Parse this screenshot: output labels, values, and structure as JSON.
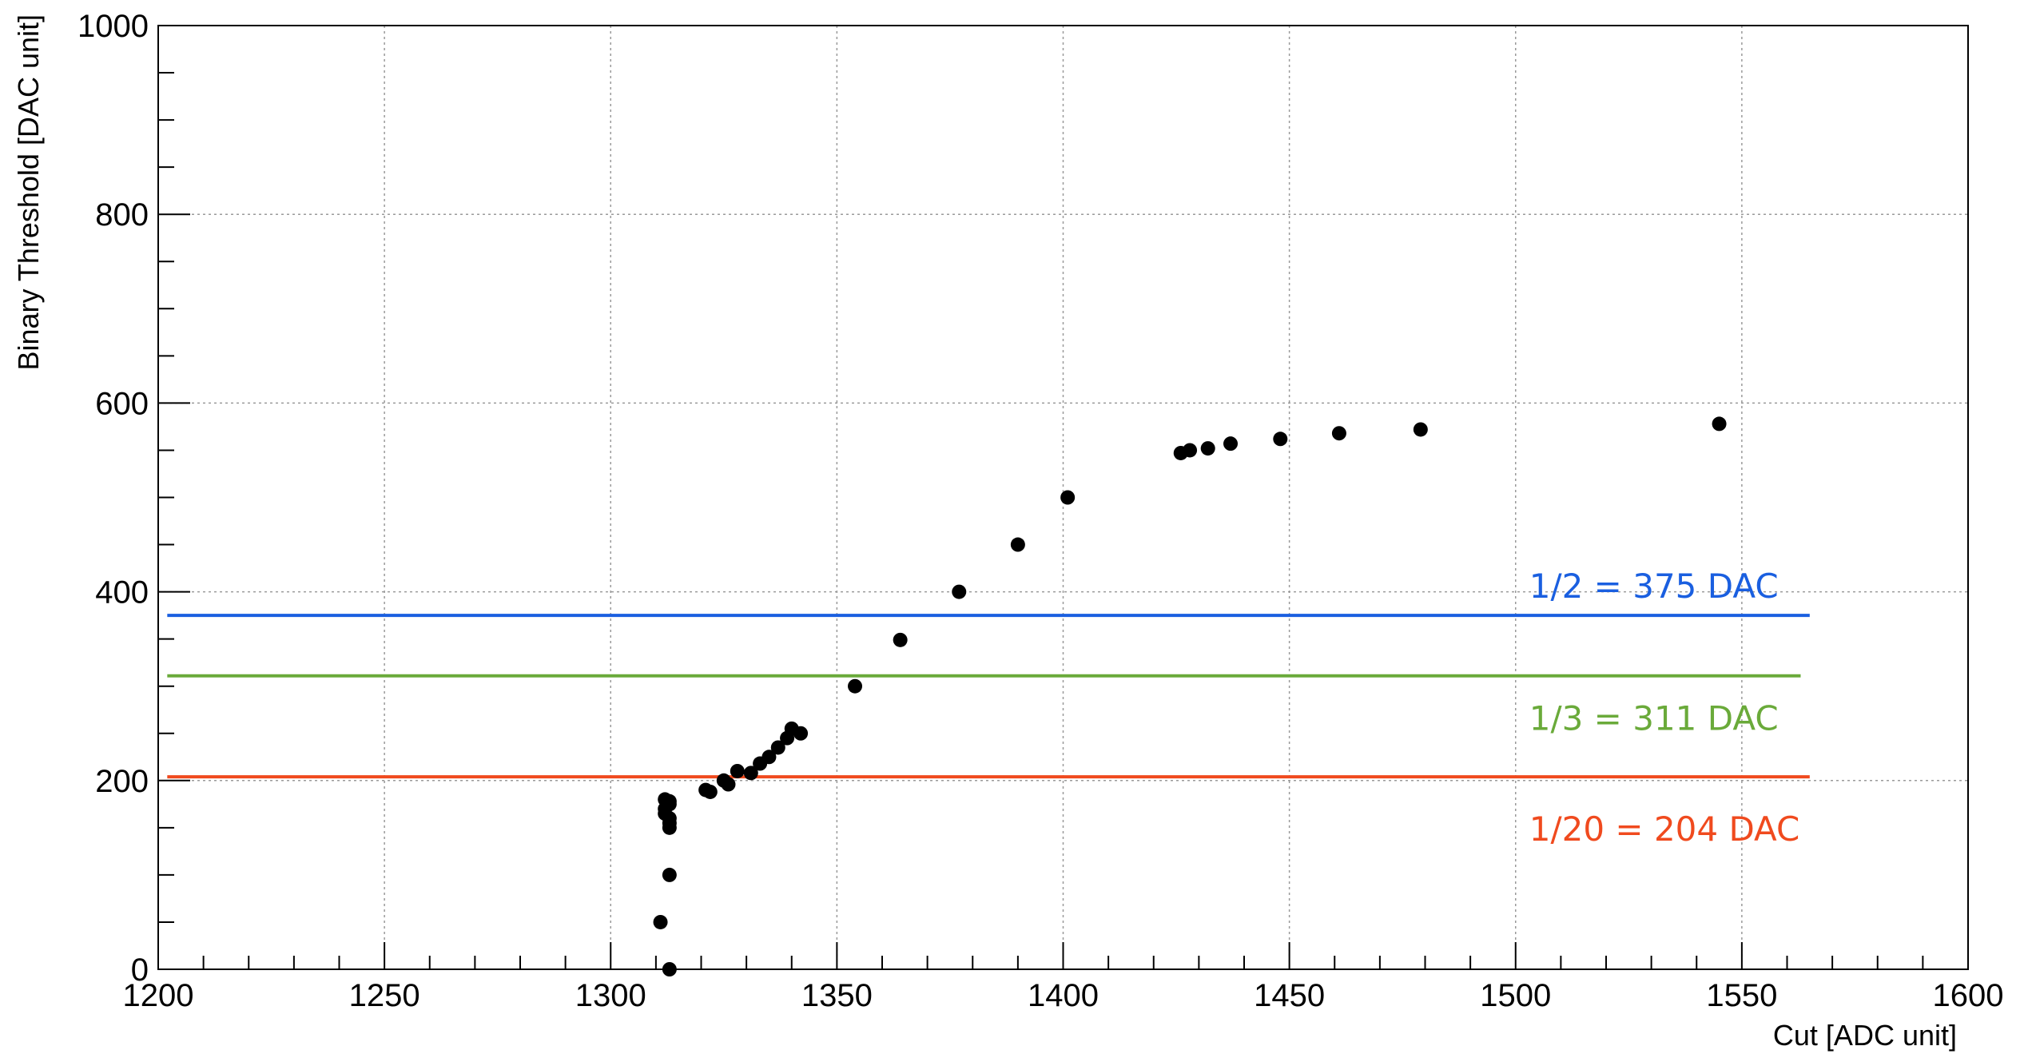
{
  "chart_data": {
    "type": "scatter",
    "title": "",
    "xlabel": "Cut [ADC unit]",
    "ylabel": "Binary Threshold [DAC unit]",
    "xlim": [
      1200,
      1600
    ],
    "ylim": [
      0,
      1000
    ],
    "x_ticks": [
      1200,
      1250,
      1300,
      1350,
      1400,
      1450,
      1500,
      1550,
      1600
    ],
    "y_ticks": [
      0,
      200,
      400,
      600,
      800,
      1000
    ],
    "grid": true,
    "legend": "none",
    "marker_color": "#000000",
    "series": [
      {
        "points": [
          [
            1311,
            50
          ],
          [
            1313,
            0
          ],
          [
            1313,
            100
          ],
          [
            1313,
            150
          ],
          [
            1313,
            155
          ],
          [
            1313,
            160
          ],
          [
            1312,
            165
          ],
          [
            1312,
            170
          ],
          [
            1312,
            180
          ],
          [
            1313,
            175
          ],
          [
            1313,
            178
          ],
          [
            1321,
            190
          ],
          [
            1322,
            188
          ],
          [
            1325,
            200
          ],
          [
            1326,
            196
          ],
          [
            1328,
            210
          ],
          [
            1331,
            208
          ],
          [
            1333,
            218
          ],
          [
            1335,
            225
          ],
          [
            1337,
            235
          ],
          [
            1339,
            245
          ],
          [
            1340,
            255
          ],
          [
            1342,
            250
          ],
          [
            1354,
            300
          ],
          [
            1364,
            349
          ],
          [
            1377,
            400
          ],
          [
            1390,
            450
          ],
          [
            1401,
            500
          ],
          [
            1426,
            547
          ],
          [
            1428,
            550
          ],
          [
            1432,
            552
          ],
          [
            1437,
            557
          ],
          [
            1448,
            562
          ],
          [
            1461,
            568
          ],
          [
            1479,
            572
          ],
          [
            1545,
            578
          ]
        ]
      }
    ],
    "reference_lines": [
      {
        "y": 375,
        "x_start": 1202,
        "x_end": 1565,
        "color": "#1a5fe0",
        "label": "1/2 = 375 DAC"
      },
      {
        "y": 311,
        "x_start": 1202,
        "x_end": 1563,
        "color": "#6aaa3a",
        "label": "1/3 = 311 DAC"
      },
      {
        "y": 204,
        "x_start": 1202,
        "x_end": 1565,
        "color": "#f04a1e",
        "label": "1/20 = 204 DAC"
      }
    ]
  }
}
